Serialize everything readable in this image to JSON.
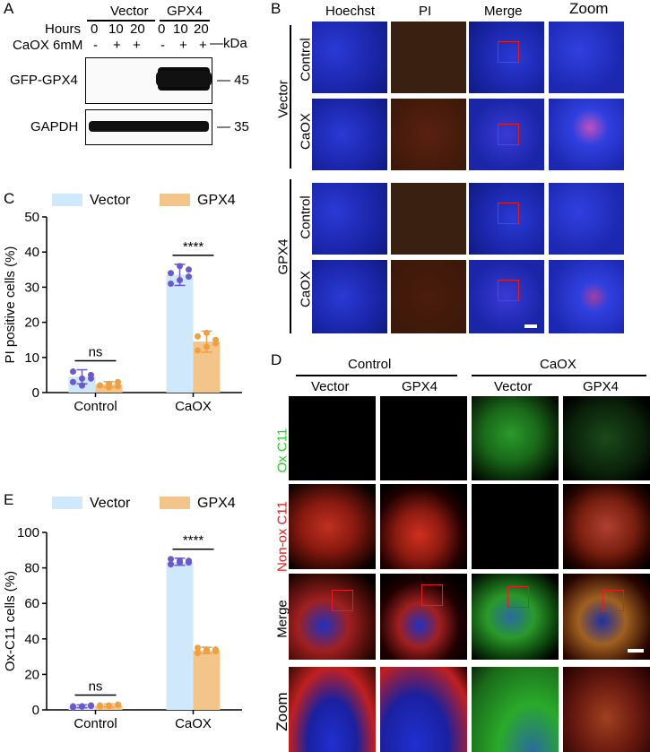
{
  "panels": {
    "A": {
      "letter": "A",
      "groups": [
        "Vector",
        "GPX4"
      ],
      "hours_label": "Hours",
      "hours": [
        "0",
        "10",
        "20",
        "0",
        "10",
        "20"
      ],
      "caox_label": "CaOX 6mM",
      "caox_signs": [
        "-",
        "+",
        "+",
        "-",
        "+",
        "+"
      ],
      "kda_label": "—kDa",
      "rows": [
        {
          "name": "GFP-GPX4",
          "marker": "— 45"
        },
        {
          "name": "GAPDH",
          "marker": "— 35"
        }
      ]
    },
    "B": {
      "letter": "B",
      "columns": [
        "Hoechst",
        "PI",
        "Merge",
        "Zoom"
      ],
      "groups": [
        "Vector",
        "GPX4"
      ],
      "rows": [
        "Control",
        "CaOX",
        "Control",
        "CaOX"
      ]
    },
    "D": {
      "letter": "D",
      "conditions": [
        "Control",
        "CaOX"
      ],
      "columns": [
        "Vector",
        "GPX4",
        "Vector",
        "GPX4"
      ],
      "rows": [
        "Ox C11",
        "Non-ox C11",
        "Merge",
        "Zoom"
      ],
      "row_colors": [
        "#2ecc2e",
        "#e02020",
        "#000000",
        "#000000"
      ]
    }
  },
  "colors": {
    "vector": "#cfe8fb",
    "gpx4": "#f4c58a",
    "vector_dots": "#6a5acd",
    "gpx4_dots": "#f0a040"
  },
  "chart_data": [
    {
      "panel": "C",
      "type": "bar",
      "categories": [
        "Control",
        "CaOX"
      ],
      "series": [
        {
          "name": "Vector",
          "values": [
            4.5,
            33.5
          ],
          "errors": [
            2.0,
            3.0
          ],
          "points": [
            [
              3,
              4,
              5,
              6,
              2,
              4
            ],
            [
              31,
              32,
              33,
              34,
              36,
              35
            ]
          ]
        },
        {
          "name": "GPX4",
          "values": [
            2.3,
            14.5
          ],
          "errors": [
            0.8,
            3.0
          ],
          "points": [
            [
              2,
              1.5,
              3,
              2,
              2.5,
              1.8
            ],
            [
              12,
              13,
              15,
              16,
              17,
              14
            ]
          ]
        }
      ],
      "ylabel": "PI positive cells (%)",
      "ylim": [
        0,
        50
      ],
      "yticks": [
        0,
        10,
        20,
        30,
        40,
        50
      ],
      "significance": [
        "ns",
        "****"
      ],
      "legend": "top"
    },
    {
      "panel": "E",
      "type": "bar",
      "categories": [
        "Control",
        "CaOX"
      ],
      "series": [
        {
          "name": "Vector",
          "values": [
            2.0,
            83.5
          ],
          "errors": [
            0.8,
            2.0
          ],
          "points": [
            [
              1.5,
              2,
              2.5,
              2,
              1.8,
              2.2
            ],
            [
              82,
              83,
              84,
              85,
              84,
              83
            ]
          ]
        },
        {
          "name": "GPX4",
          "values": [
            2.5,
            33.5
          ],
          "errors": [
            0.8,
            1.8
          ],
          "points": [
            [
              2,
              2.5,
              3,
              2.5,
              2.2,
              2.8
            ],
            [
              32,
              33,
              34,
              35,
              34,
              33
            ]
          ]
        }
      ],
      "ylabel": "Ox-C11 cells (%)",
      "ylim": [
        0,
        100
      ],
      "yticks": [
        0,
        20,
        40,
        60,
        80,
        100
      ],
      "significance": [
        "ns",
        "****"
      ],
      "legend": "top"
    }
  ],
  "chart_letters": [
    "C",
    "E"
  ]
}
